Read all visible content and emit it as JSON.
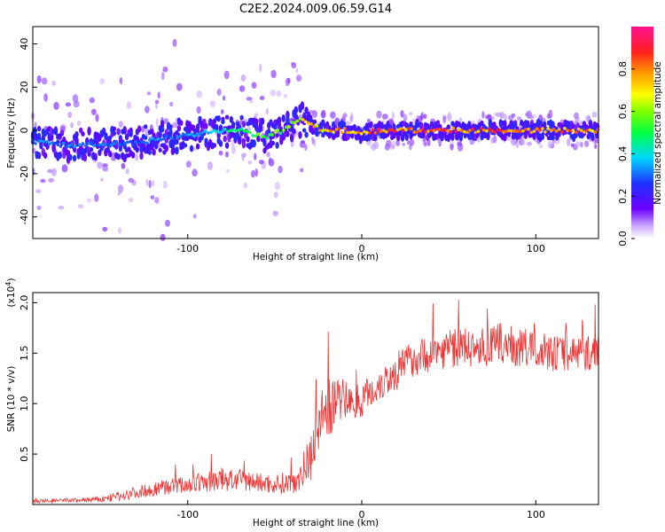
{
  "title": "C2E2.2024.009.06.59.G14",
  "chart_data": [
    {
      "type": "heatmap",
      "name": "spectrogram",
      "xlabel": "Height of straight line (km)",
      "ylabel": "Frequency (Hz)",
      "xlim": [
        -189,
        136
      ],
      "ylim": [
        -50,
        48
      ],
      "xticks": [
        -100,
        0,
        100
      ],
      "yticks": [
        -40,
        -20,
        0,
        20,
        40
      ],
      "colorbar": {
        "label": "Normalized spectral amplitude",
        "range": [
          0,
          1
        ],
        "ticks": [
          "0.0",
          "0.2",
          "0.4",
          "0.6",
          "0.8"
        ],
        "colormap": "rainbow (white-violet-blue-cyan-green-yellow-orange-red-magenta)"
      },
      "ridge": {
        "description": "dominant frequency track vs height",
        "x": [
          -189,
          -170,
          -150,
          -130,
          -110,
          -90,
          -70,
          -55,
          -45,
          -38,
          -33,
          -28,
          -20,
          -10,
          0,
          10,
          30,
          60,
          90,
          120,
          136
        ],
        "y": [
          -5,
          -7,
          -6,
          -6,
          -3,
          -1,
          0,
          -3,
          0,
          4,
          5,
          2,
          0,
          0,
          -1,
          0,
          0,
          0,
          0,
          0,
          0
        ],
        "peak_amplitude": [
          0.35,
          0.35,
          0.35,
          0.35,
          0.35,
          0.4,
          0.55,
          0.6,
          0.65,
          0.7,
          0.75,
          0.8,
          0.85,
          0.9,
          0.9,
          0.95,
          0.95,
          0.95,
          0.9,
          0.9,
          0.85
        ]
      }
    },
    {
      "type": "line",
      "name": "snr",
      "xlabel": "Height of straight line (km)",
      "ylabel": "SNR (10 * v/v)",
      "scale_label": "(x10",
      "scale_exp": "4",
      "xlim": [
        -189,
        136
      ],
      "ylim": [
        0,
        2.1
      ],
      "xticks": [
        -100,
        0,
        100
      ],
      "yticks": [
        "0.5",
        "1.0",
        "1.5",
        "2.0"
      ],
      "color": "#ee3333",
      "series": [
        {
          "x": [
            -189,
            -170,
            -150,
            -140,
            -130,
            -120,
            -110,
            -100,
            -90,
            -80,
            -70,
            -60,
            -50,
            -40,
            -35,
            -30,
            -25,
            -20,
            -15,
            -10,
            -5,
            0,
            5,
            10,
            15,
            20,
            25,
            30,
            40,
            50,
            60,
            70,
            80,
            90,
            100,
            110,
            120,
            130,
            136
          ],
          "values": [
            0.03,
            0.04,
            0.05,
            0.08,
            0.12,
            0.15,
            0.18,
            0.2,
            0.22,
            0.25,
            0.24,
            0.22,
            0.2,
            0.22,
            0.3,
            0.45,
            0.8,
            0.95,
            1.0,
            1.05,
            1.0,
            1.05,
            1.1,
            1.2,
            1.25,
            1.3,
            1.4,
            1.45,
            1.5,
            1.55,
            1.55,
            1.55,
            1.6,
            1.55,
            1.55,
            1.5,
            1.5,
            1.5,
            1.5
          ],
          "spread": [
            0.02,
            0.02,
            0.03,
            0.05,
            0.06,
            0.07,
            0.08,
            0.09,
            0.1,
            0.12,
            0.11,
            0.1,
            0.1,
            0.12,
            0.15,
            0.25,
            0.3,
            0.3,
            0.25,
            0.2,
            0.18,
            0.18,
            0.18,
            0.18,
            0.18,
            0.18,
            0.18,
            0.18,
            0.18,
            0.2,
            0.2,
            0.2,
            0.2,
            0.2,
            0.18,
            0.18,
            0.18,
            0.18,
            0.18
          ]
        }
      ]
    }
  ]
}
